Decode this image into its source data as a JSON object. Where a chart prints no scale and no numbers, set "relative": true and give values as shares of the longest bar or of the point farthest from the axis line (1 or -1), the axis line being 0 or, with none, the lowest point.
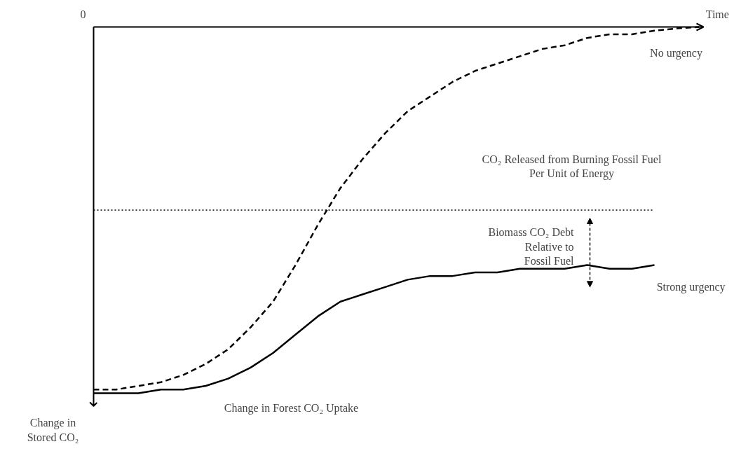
{
  "chart_data": {
    "type": "line",
    "relative": true,
    "xlabel": "Time",
    "ylabel": "Change in Stored CO₂",
    "categories": [
      null,
      null,
      null,
      null,
      null,
      null,
      null,
      null,
      null,
      null,
      null,
      null,
      null,
      null,
      null,
      null,
      null,
      null,
      null,
      null,
      null,
      null,
      null,
      null,
      null,
      null,
      null,
      null
    ],
    "series": [
      {
        "name": "No urgency",
        "color": "#000000",
        "line_style": "dashed",
        "values": [
          -0.99,
          -0.99,
          -0.98,
          -0.97,
          -0.95,
          -0.92,
          -0.88,
          -0.82,
          -0.75,
          -0.65,
          -0.54,
          -0.44,
          -0.36,
          -0.29,
          -0.23,
          -0.19,
          -0.15,
          -0.12,
          -0.1,
          -0.08,
          -0.06,
          -0.05,
          -0.03,
          -0.02,
          -0.02,
          -0.01,
          -0.004,
          0
        ]
      },
      {
        "name": "Strong urgency",
        "color": "#000000",
        "line_style": "solid",
        "values": [
          -1,
          -1,
          -1,
          -0.99,
          -0.99,
          -0.98,
          -0.96,
          -0.93,
          -0.89,
          -0.84,
          -0.79,
          -0.75,
          -0.73,
          -0.71,
          -0.69,
          -0.68,
          -0.68,
          -0.67,
          -0.67,
          -0.66,
          -0.66,
          -0.66,
          -0.65,
          -0.66,
          -0.66,
          -0.65,
          null,
          null
        ]
      }
    ],
    "ref_lines": [
      {
        "axis": "y",
        "value": -0.5,
        "label": "CO₂ Released from Burning Fossil Fuel Per Unit of Energy",
        "line_style": "dotted",
        "color": "#000000"
      }
    ],
    "annotations": [
      "0",
      "Change in Forest CO₂ Uptake",
      "Biomass CO₂ Debt Relative to Fossil Fuel"
    ],
    "grid": false
  }
}
